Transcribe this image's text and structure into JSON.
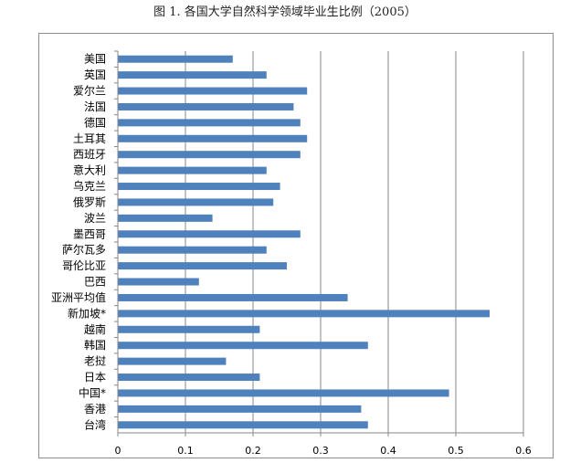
{
  "chart_data": {
    "type": "bar",
    "orientation": "horizontal",
    "title": "图 1. 各国大学自然科学领域毕业生比例（2005）",
    "xlabel": "",
    "ylabel": "",
    "categories": [
      "美国",
      "英国",
      "爱尔兰",
      "法国",
      "德国",
      "土耳其",
      "西班牙",
      "意大利",
      "乌克兰",
      "俄罗斯",
      "波兰",
      "墨西哥",
      "萨尔瓦多",
      "哥伦比亚",
      "巴西",
      "亚洲平均值",
      "新加坡*",
      "越南",
      "韩国",
      "老挝",
      "日本",
      "中国*",
      "香港",
      "台湾"
    ],
    "values": [
      0.17,
      0.22,
      0.28,
      0.26,
      0.27,
      0.28,
      0.27,
      0.22,
      0.24,
      0.23,
      0.14,
      0.27,
      0.22,
      0.25,
      0.12,
      0.34,
      0.55,
      0.21,
      0.37,
      0.16,
      0.21,
      0.49,
      0.36,
      0.37
    ],
    "xlim": [
      0,
      0.6
    ],
    "xticks": [
      "0",
      "0.1",
      "0.2",
      "0.3",
      "0.4",
      "0.5",
      "0.6"
    ],
    "grid": "vertical",
    "bar_color": "#4f81bd",
    "grid_color": "#878787"
  }
}
